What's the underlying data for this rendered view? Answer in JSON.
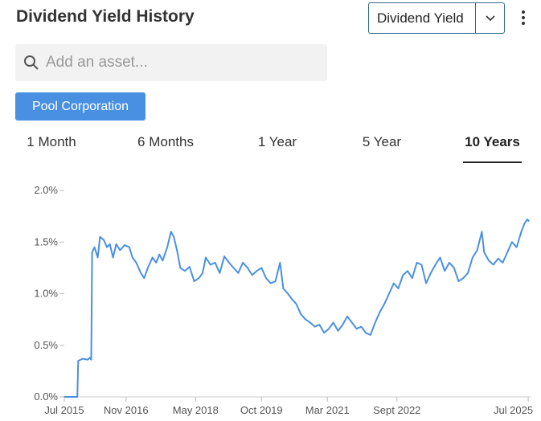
{
  "header": {
    "title": "Dividend Yield History"
  },
  "metric_select": {
    "selected": "Dividend Yield"
  },
  "search": {
    "placeholder": "Add an asset..."
  },
  "asset": {
    "label": "Pool Corporation"
  },
  "ranges": [
    {
      "label": "1 Month",
      "active": false
    },
    {
      "label": "6 Months",
      "active": false
    },
    {
      "label": "1 Year",
      "active": false
    },
    {
      "label": "5 Year",
      "active": false
    },
    {
      "label": "10 Years",
      "active": true
    }
  ],
  "colors": {
    "line": "#4a90e2",
    "accent": "#4a90e2"
  },
  "chart_data": {
    "type": "line",
    "title": "",
    "xlabel": "",
    "ylabel": "",
    "ylim": [
      0,
      2.0
    ],
    "yticks": [
      "0.0%",
      "0.5%",
      "1.0%",
      "1.5%",
      "2.0%"
    ],
    "xticks": [
      {
        "label": "Jul 2015",
        "x": 2015.5
      },
      {
        "label": "Nov 2016",
        "x": 2016.83
      },
      {
        "label": "May 2018",
        "x": 2018.33
      },
      {
        "label": "Oct 2019",
        "x": 2019.75
      },
      {
        "label": "Mar 2021",
        "x": 2021.17
      },
      {
        "label": "Sept 2022",
        "x": 2022.67
      },
      {
        "label": "Jul 2025",
        "x": 2025.5
      }
    ],
    "xlim": [
      2015.5,
      2025.55
    ],
    "series": [
      {
        "points": [
          [
            2015.5,
            0.0
          ],
          [
            2015.78,
            0.0
          ],
          [
            2015.8,
            0.35
          ],
          [
            2015.9,
            0.37
          ],
          [
            2016.0,
            0.36
          ],
          [
            2016.05,
            0.38
          ],
          [
            2016.08,
            0.36
          ],
          [
            2016.1,
            1.4
          ],
          [
            2016.15,
            1.45
          ],
          [
            2016.22,
            1.35
          ],
          [
            2016.27,
            1.55
          ],
          [
            2016.35,
            1.52
          ],
          [
            2016.42,
            1.45
          ],
          [
            2016.48,
            1.48
          ],
          [
            2016.55,
            1.35
          ],
          [
            2016.62,
            1.48
          ],
          [
            2016.7,
            1.42
          ],
          [
            2016.8,
            1.47
          ],
          [
            2016.9,
            1.45
          ],
          [
            2016.97,
            1.35
          ],
          [
            2017.05,
            1.3
          ],
          [
            2017.15,
            1.2
          ],
          [
            2017.22,
            1.15
          ],
          [
            2017.3,
            1.25
          ],
          [
            2017.4,
            1.35
          ],
          [
            2017.48,
            1.3
          ],
          [
            2017.55,
            1.38
          ],
          [
            2017.62,
            1.32
          ],
          [
            2017.72,
            1.45
          ],
          [
            2017.8,
            1.6
          ],
          [
            2017.86,
            1.55
          ],
          [
            2017.93,
            1.42
          ],
          [
            2018.0,
            1.25
          ],
          [
            2018.1,
            1.22
          ],
          [
            2018.2,
            1.26
          ],
          [
            2018.3,
            1.12
          ],
          [
            2018.4,
            1.15
          ],
          [
            2018.48,
            1.2
          ],
          [
            2018.55,
            1.35
          ],
          [
            2018.65,
            1.28
          ],
          [
            2018.75,
            1.3
          ],
          [
            2018.85,
            1.2
          ],
          [
            2018.95,
            1.36
          ],
          [
            2019.05,
            1.3
          ],
          [
            2019.15,
            1.25
          ],
          [
            2019.25,
            1.2
          ],
          [
            2019.35,
            1.3
          ],
          [
            2019.45,
            1.25
          ],
          [
            2019.55,
            1.18
          ],
          [
            2019.65,
            1.22
          ],
          [
            2019.75,
            1.25
          ],
          [
            2019.85,
            1.15
          ],
          [
            2019.95,
            1.1
          ],
          [
            2020.05,
            1.12
          ],
          [
            2020.15,
            1.3
          ],
          [
            2020.22,
            1.05
          ],
          [
            2020.32,
            1.0
          ],
          [
            2020.4,
            0.95
          ],
          [
            2020.5,
            0.9
          ],
          [
            2020.6,
            0.8
          ],
          [
            2020.7,
            0.75
          ],
          [
            2020.8,
            0.72
          ],
          [
            2020.9,
            0.68
          ],
          [
            2021.0,
            0.7
          ],
          [
            2021.1,
            0.62
          ],
          [
            2021.2,
            0.66
          ],
          [
            2021.3,
            0.72
          ],
          [
            2021.4,
            0.64
          ],
          [
            2021.5,
            0.7
          ],
          [
            2021.6,
            0.78
          ],
          [
            2021.7,
            0.72
          ],
          [
            2021.8,
            0.66
          ],
          [
            2021.9,
            0.68
          ],
          [
            2022.0,
            0.62
          ],
          [
            2022.1,
            0.6
          ],
          [
            2022.2,
            0.72
          ],
          [
            2022.3,
            0.82
          ],
          [
            2022.4,
            0.9
          ],
          [
            2022.5,
            1.0
          ],
          [
            2022.6,
            1.1
          ],
          [
            2022.7,
            1.05
          ],
          [
            2022.8,
            1.18
          ],
          [
            2022.9,
            1.22
          ],
          [
            2023.0,
            1.15
          ],
          [
            2023.1,
            1.3
          ],
          [
            2023.2,
            1.28
          ],
          [
            2023.3,
            1.1
          ],
          [
            2023.4,
            1.2
          ],
          [
            2023.5,
            1.28
          ],
          [
            2023.6,
            1.35
          ],
          [
            2023.7,
            1.22
          ],
          [
            2023.8,
            1.3
          ],
          [
            2023.9,
            1.25
          ],
          [
            2024.0,
            1.12
          ],
          [
            2024.1,
            1.15
          ],
          [
            2024.2,
            1.2
          ],
          [
            2024.3,
            1.35
          ],
          [
            2024.4,
            1.42
          ],
          [
            2024.5,
            1.6
          ],
          [
            2024.55,
            1.4
          ],
          [
            2024.65,
            1.32
          ],
          [
            2024.75,
            1.28
          ],
          [
            2024.85,
            1.34
          ],
          [
            2024.95,
            1.3
          ],
          [
            2025.05,
            1.4
          ],
          [
            2025.15,
            1.5
          ],
          [
            2025.25,
            1.45
          ],
          [
            2025.35,
            1.6
          ],
          [
            2025.42,
            1.68
          ],
          [
            2025.48,
            1.72
          ],
          [
            2025.52,
            1.7
          ]
        ]
      }
    ]
  }
}
